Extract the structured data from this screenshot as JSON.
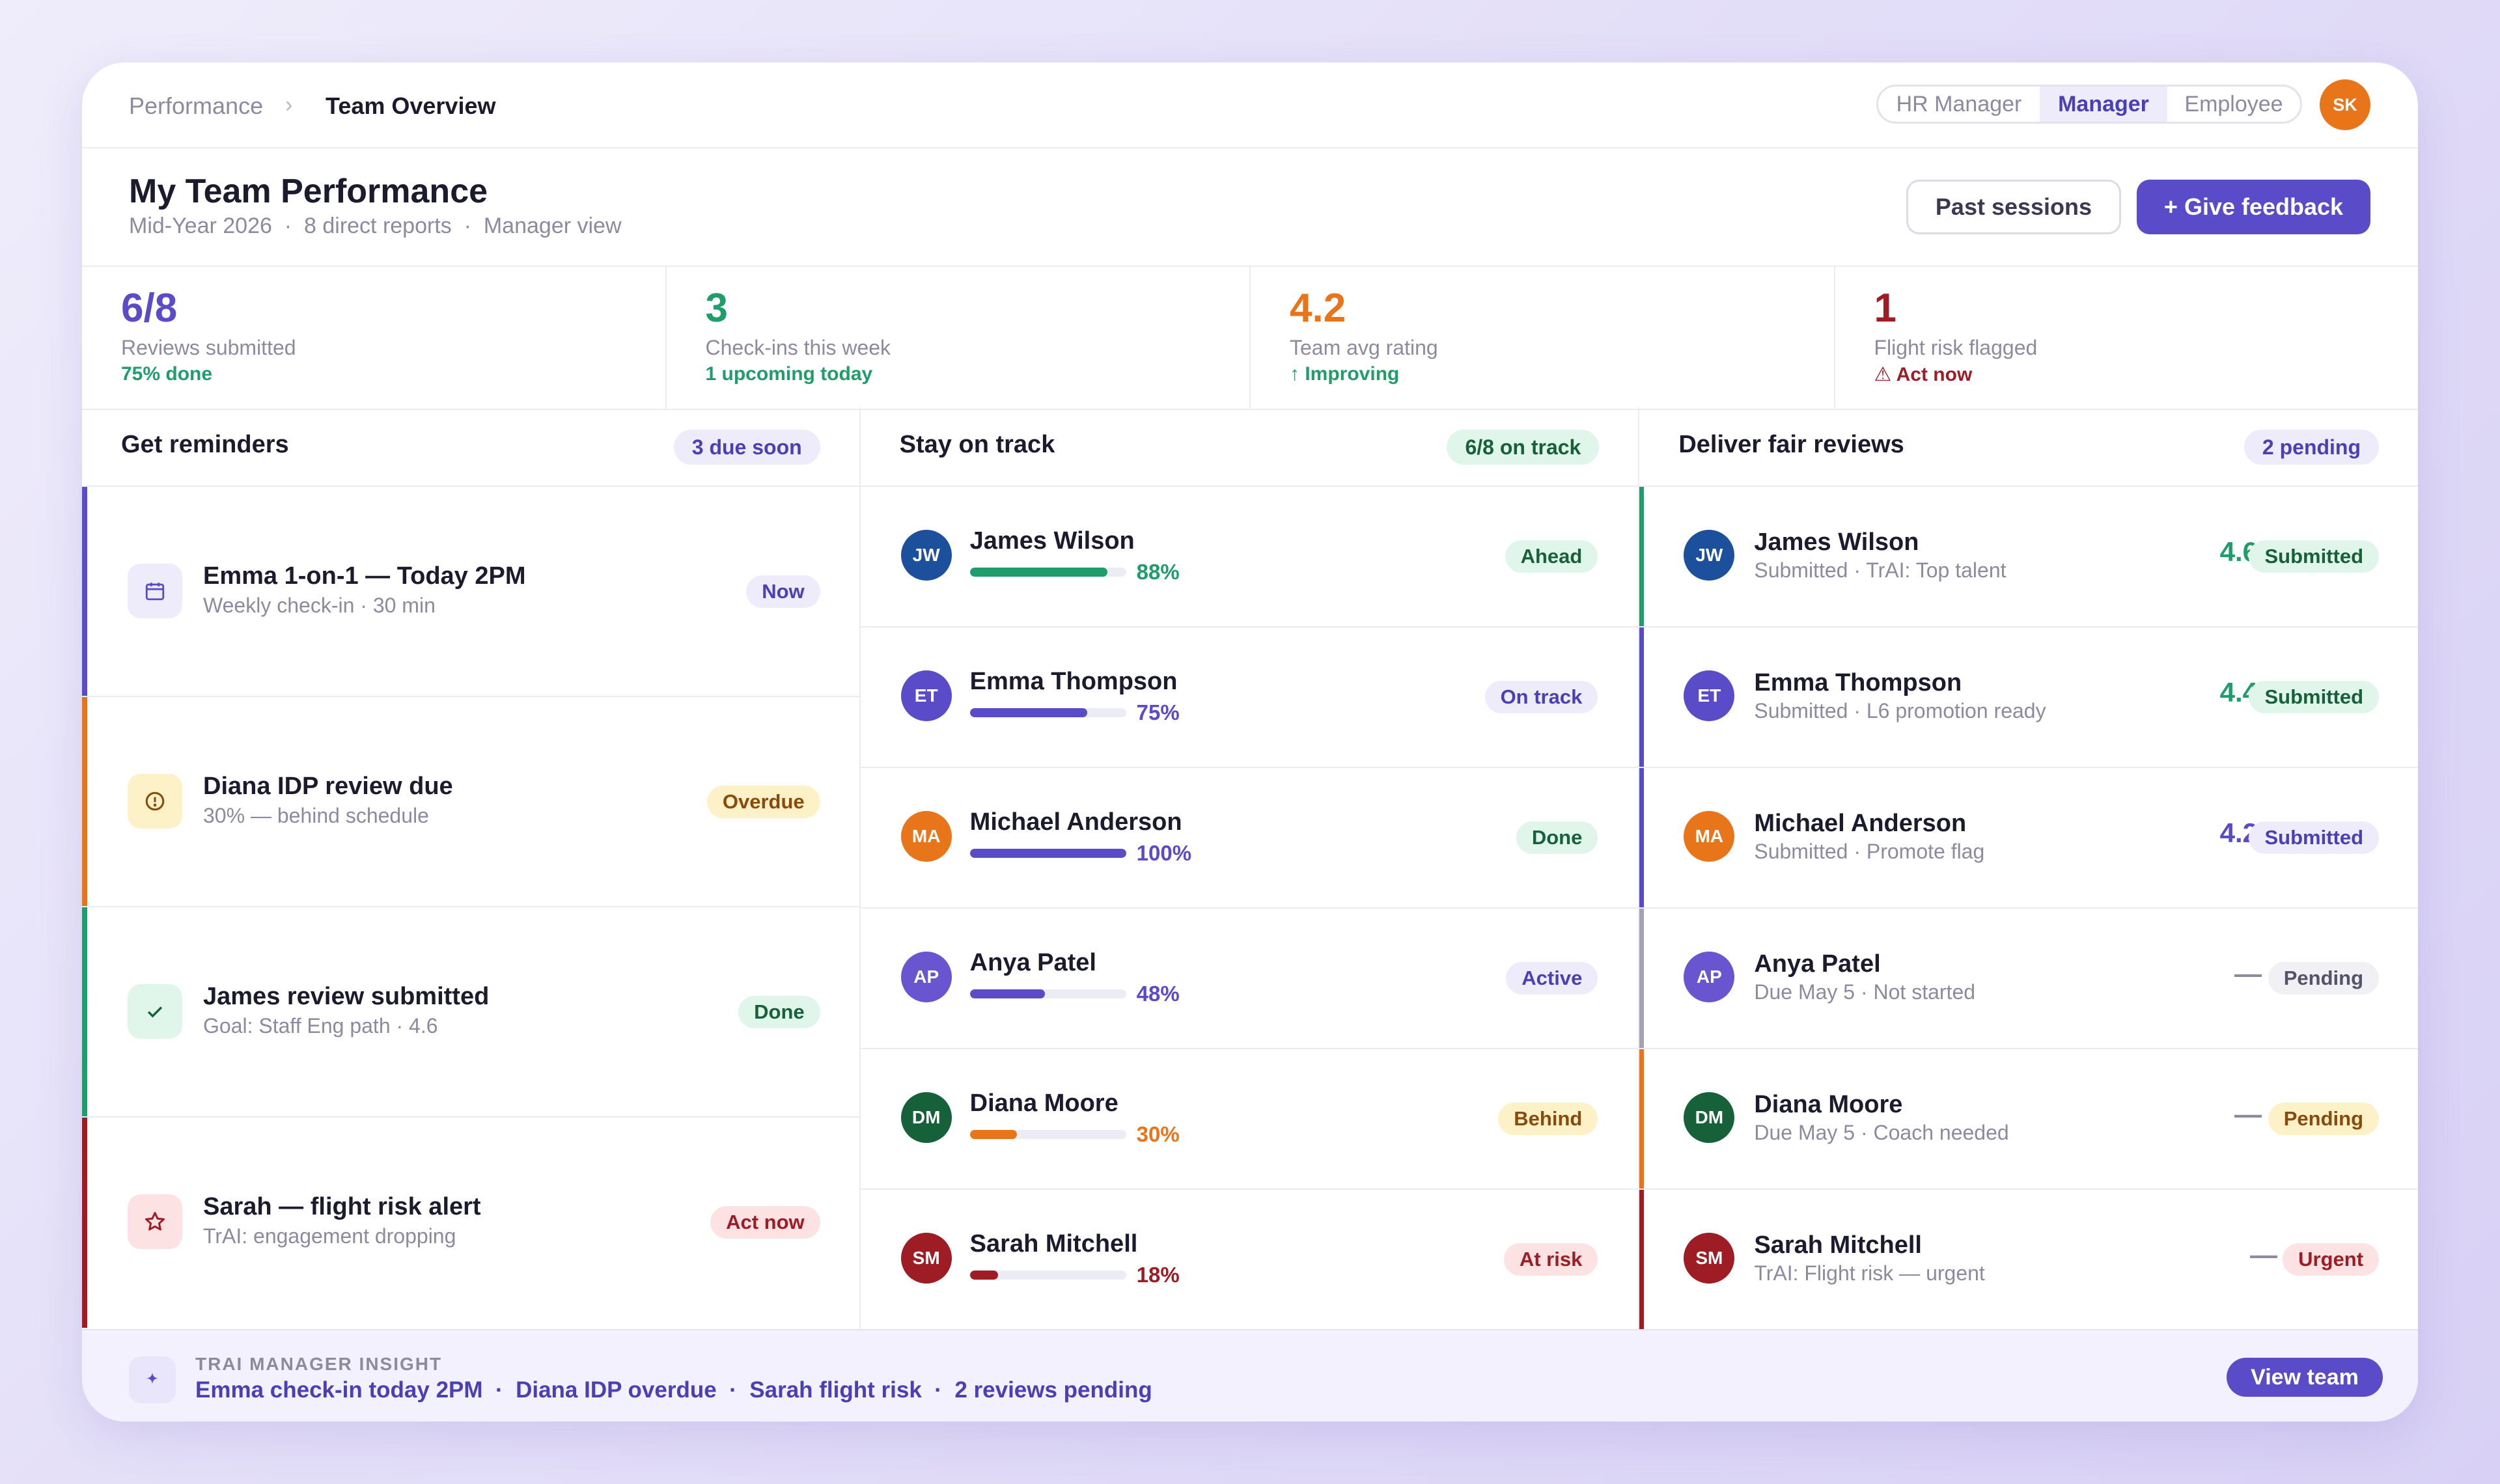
{
  "breadcrumb": {
    "parent": "Performance",
    "separator": "›",
    "current": "Team Overview"
  },
  "role_switch": {
    "options": [
      "HR Manager",
      "Manager",
      "Employee"
    ],
    "selected": "Manager"
  },
  "user": {
    "initials": "SK"
  },
  "header": {
    "title": "My Team Performance",
    "subtitle": "Mid-Year 2026  ·  8 direct reports  ·  Manager view",
    "past_sessions_label": "Past sessions",
    "give_feedback_label": "+ Give feedback"
  },
  "stats": [
    {
      "value": "6/8",
      "label": "Reviews submitted",
      "note": "75% done",
      "value_color": "#5a4bc9",
      "note_color": "#1f9d6a"
    },
    {
      "value": "3",
      "label": "Check-ins this week",
      "note": "1 upcoming today",
      "value_color": "#1f9d6a",
      "note_color": "#1f9d6a"
    },
    {
      "value": "4.2",
      "label": "Team avg rating",
      "note": "↑ Improving",
      "value_color": "#e8751a",
      "note_color": "#1f9d6a"
    },
    {
      "value": "1",
      "label": "Flight risk flagged",
      "note": "⚠ Act now",
      "value_color": "#9e1c24",
      "note_color": "#9e1c24"
    }
  ],
  "reminders": {
    "title": "Get reminders",
    "badge": "3 due soon",
    "items": [
      {
        "title": "Emma 1-on-1 — Today 2PM",
        "subtitle": "Weekly check-in · 30 min",
        "status": "Now",
        "icon": "calendar-icon",
        "accent": "#5a4bc9"
      },
      {
        "title": "Diana IDP review due",
        "subtitle": "30% — behind schedule",
        "status": "Overdue",
        "icon": "alert-circle-icon",
        "accent": "#e8751a"
      },
      {
        "title": "James review submitted",
        "subtitle": "Goal: Staff Eng path · 4.6",
        "status": "Done",
        "icon": "check-icon",
        "accent": "#1f9d6a"
      },
      {
        "title": "Sarah — flight risk alert",
        "subtitle": "TrAI: engagement dropping",
        "status": "Act now",
        "icon": "star-icon",
        "accent": "#9e1c24"
      }
    ]
  },
  "on_track": {
    "title": "Stay on track",
    "badge": "6/8 on track",
    "people": [
      {
        "initials": "JW",
        "name": "James Wilson",
        "progress": 88,
        "progress_label": "88%",
        "status": "Ahead",
        "avatar_color": "#1c4f9c",
        "bar_color": "#1f9d6a"
      },
      {
        "initials": "ET",
        "name": "Emma Thompson",
        "progress": 75,
        "progress_label": "75%",
        "status": "On track",
        "avatar_color": "#5a4bc9",
        "bar_color": "#5a4bc9"
      },
      {
        "initials": "MA",
        "name": "Michael Anderson",
        "progress": 100,
        "progress_label": "100%",
        "status": "Done",
        "avatar_color": "#e8751a",
        "bar_color": "#5a4bc9"
      },
      {
        "initials": "AP",
        "name": "Anya Patel",
        "progress": 48,
        "progress_label": "48%",
        "status": "Active",
        "avatar_color": "#6a55d0",
        "bar_color": "#5a4bc9"
      },
      {
        "initials": "DM",
        "name": "Diana Moore",
        "progress": 30,
        "progress_label": "30%",
        "status": "Behind",
        "avatar_color": "#17613a",
        "bar_color": "#e8751a"
      },
      {
        "initials": "SM",
        "name": "Sarah Mitchell",
        "progress": 18,
        "progress_label": "18%",
        "status": "At risk",
        "avatar_color": "#9e1c24",
        "bar_color": "#9e1c24"
      }
    ]
  },
  "reviews": {
    "title": "Deliver fair reviews",
    "badge": "2 pending",
    "people": [
      {
        "initials": "JW",
        "name": "James Wilson",
        "detail": "Submitted · TrAI: Top talent",
        "score": "4.6",
        "status": "Submitted",
        "avatar_color": "#1c4f9c",
        "accent": "#1f9d6a"
      },
      {
        "initials": "ET",
        "name": "Emma Thompson",
        "detail": "Submitted · L6 promotion ready",
        "score": "4.4",
        "status": "Submitted",
        "avatar_color": "#5a4bc9",
        "accent": "#5a4bc9"
      },
      {
        "initials": "MA",
        "name": "Michael Anderson",
        "detail": "Submitted · Promote flag",
        "score": "4.2",
        "status": "Submitted",
        "avatar_color": "#e8751a",
        "accent": "#5a4bc9"
      },
      {
        "initials": "AP",
        "name": "Anya Patel",
        "detail": "Due May 5 · Not started",
        "score": "—",
        "status": "Pending",
        "avatar_color": "#6a55d0",
        "accent": "#a3a1b3"
      },
      {
        "initials": "DM",
        "name": "Diana Moore",
        "detail": "Due May 5 · Coach needed",
        "score": "—",
        "status": "Pending",
        "avatar_color": "#17613a",
        "accent": "#e8751a"
      },
      {
        "initials": "SM",
        "name": "Sarah Mitchell",
        "detail": "TrAI: Flight risk — urgent",
        "score": "—",
        "status": "Urgent",
        "avatar_color": "#9e1c24",
        "accent": "#9e1c24"
      }
    ]
  },
  "insight": {
    "label": "TRAI MANAGER INSIGHT",
    "text": "Emma check-in today 2PM  ·  Diana IDP overdue  ·  Sarah flight risk  ·  2 reviews pending",
    "button_label": "View team",
    "icon": "sparkle-icon"
  }
}
